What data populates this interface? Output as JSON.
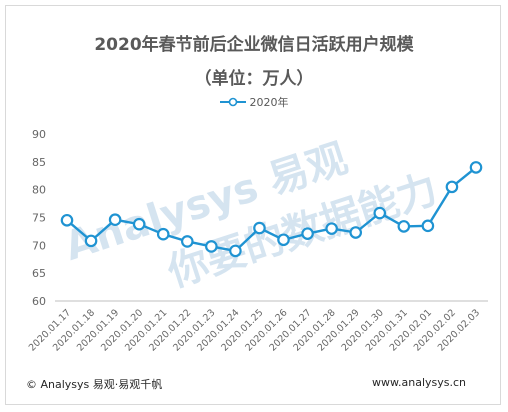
{
  "chart_data": {
    "type": "line",
    "title": "2020年春节前后企业微信日活跃用户规模",
    "subtitle": "（单位：万人）",
    "categories": [
      "2020.01.17",
      "2020.01.18",
      "2020.01.19",
      "2020.01.20",
      "2020.01.21",
      "2020.01.22",
      "2020.01.23",
      "2020.01.24",
      "2020.01.25",
      "2020.01.26",
      "2020.01.27",
      "2020.01.28",
      "2020.01.29",
      "2020.01.30",
      "2020.01.31",
      "2020.02.01",
      "2020.02.02",
      "2020.02.03"
    ],
    "series": [
      {
        "name": "2020年",
        "values": [
          74.5,
          70.8,
          74.6,
          73.8,
          72.0,
          70.7,
          69.8,
          69.0,
          73.1,
          71.0,
          72.1,
          73.0,
          72.3,
          75.8,
          73.4,
          73.5,
          80.5,
          84.0
        ]
      }
    ],
    "ylim": [
      60,
      90
    ],
    "yticks": [
      60,
      65,
      70,
      75,
      80,
      85,
      90
    ],
    "grid": false,
    "legend": "top-center",
    "color": "#1f93d2"
  },
  "footer": {
    "copyright": "© Analysys 易观·易观千帆",
    "website": "www.analysys.cn"
  },
  "watermark": {
    "brand": "Analysys 易观",
    "slogan": "你要的数据能力"
  }
}
